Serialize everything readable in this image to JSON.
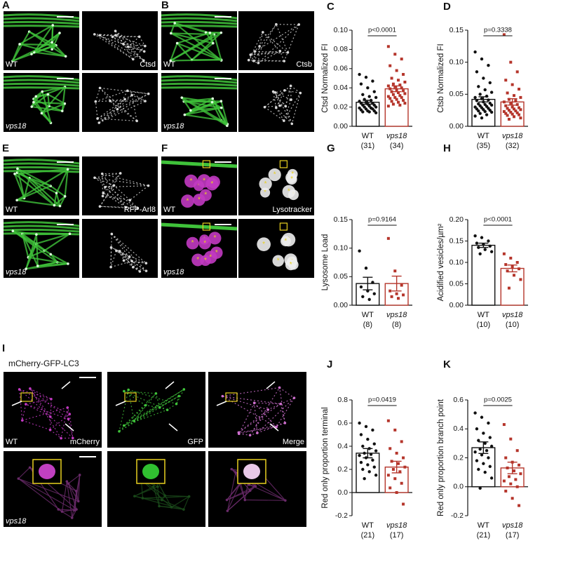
{
  "micrographs": [
    {
      "panel": "A",
      "labels": [
        "WT",
        "Ctsd",
        "vps18"
      ]
    },
    {
      "panel": "B",
      "labels": [
        "WT",
        "Ctsb",
        "vps18"
      ]
    },
    {
      "panel": "E",
      "labels": [
        "WT",
        "RFP-Arl8",
        "vps18"
      ]
    },
    {
      "panel": "F",
      "labels": [
        "WT",
        "Lysotracker",
        "vps18"
      ]
    },
    {
      "panel": "I",
      "title": "mCherry-GFP-LC3",
      "labels": [
        "WT",
        "mCherry",
        "GFP",
        "Merge",
        "vps18"
      ]
    }
  ],
  "chart_data": [
    {
      "type": "bar",
      "panel": "C",
      "y_label": "Ctsd Normalized FI",
      "annotation": "p<0.0001",
      "categories": [
        "WT",
        "vps18"
      ],
      "sample_sizes": [
        "(31)",
        "(34)"
      ],
      "colors": [
        "#111111",
        "#b5352b"
      ],
      "values": [
        0.025,
        0.039
      ],
      "errors": [
        0.002,
        0.003
      ],
      "points": [
        [
          0.054,
          0.051,
          0.047,
          0.044,
          0.04,
          0.036,
          0.033,
          0.031,
          0.03,
          0.028,
          0.027,
          0.026,
          0.025,
          0.024,
          0.024,
          0.023,
          0.022,
          0.022,
          0.021,
          0.02,
          0.02,
          0.019,
          0.019,
          0.018,
          0.018,
          0.017,
          0.016,
          0.016,
          0.015,
          0.015,
          0.014
        ],
        [
          0.083,
          0.075,
          0.07,
          0.063,
          0.058,
          0.054,
          0.05,
          0.048,
          0.046,
          0.044,
          0.043,
          0.042,
          0.041,
          0.04,
          0.039,
          0.038,
          0.037,
          0.036,
          0.035,
          0.034,
          0.033,
          0.032,
          0.031,
          0.03,
          0.03,
          0.029,
          0.028,
          0.027,
          0.026,
          0.025,
          0.024,
          0.023,
          0.022,
          0.021
        ]
      ],
      "ylim": [
        0,
        0.1
      ],
      "yticks": [
        {
          "value": 0,
          "label": "0.00"
        },
        {
          "value": 0.02,
          "label": "0.02"
        },
        {
          "value": 0.04,
          "label": "0.04"
        },
        {
          "value": 0.06,
          "label": "0.06"
        },
        {
          "value": 0.08,
          "label": "0.08"
        },
        {
          "value": 0.1,
          "label": "0.10"
        }
      ]
    },
    {
      "type": "bar",
      "panel": "D",
      "y_label": "Ctsb Normalized FI",
      "annotation": "p=0.3338",
      "categories": [
        "WT",
        "vps18"
      ],
      "sample_sizes": [
        "(35)",
        "(32)"
      ],
      "colors": [
        "#111111",
        "#b5352b"
      ],
      "values": [
        0.042,
        0.038
      ],
      "errors": [
        0.004,
        0.005
      ],
      "points": [
        [
          0.116,
          0.105,
          0.095,
          0.085,
          0.075,
          0.068,
          0.062,
          0.057,
          0.053,
          0.05,
          0.047,
          0.045,
          0.043,
          0.041,
          0.04,
          0.038,
          0.036,
          0.035,
          0.034,
          0.033,
          0.032,
          0.031,
          0.03,
          0.029,
          0.028,
          0.027,
          0.026,
          0.025,
          0.024,
          0.023,
          0.022,
          0.02,
          0.018,
          0.016,
          0.013
        ],
        [
          0.143,
          0.1,
          0.085,
          0.072,
          0.065,
          0.058,
          0.052,
          0.048,
          0.045,
          0.042,
          0.04,
          0.038,
          0.036,
          0.034,
          0.032,
          0.03,
          0.029,
          0.028,
          0.027,
          0.026,
          0.025,
          0.024,
          0.023,
          0.022,
          0.021,
          0.02,
          0.019,
          0.018,
          0.017,
          0.015,
          0.013,
          0.011
        ]
      ],
      "ylim": [
        0,
        0.15
      ],
      "yticks": [
        {
          "value": 0,
          "label": "0.00"
        },
        {
          "value": 0.05,
          "label": "0.05"
        },
        {
          "value": 0.1,
          "label": "0.10"
        },
        {
          "value": 0.15,
          "label": "0.15"
        }
      ]
    },
    {
      "type": "bar",
      "panel": "G",
      "y_label": "Lysosome Load",
      "annotation": "p=0.9164",
      "categories": [
        "WT",
        "vps18"
      ],
      "sample_sizes": [
        "(8)",
        "(8)"
      ],
      "colors": [
        "#111111",
        "#b5352b"
      ],
      "values": [
        0.038,
        0.038
      ],
      "errors": [
        0.011,
        0.013
      ],
      "points": [
        [
          0.095,
          0.065,
          0.04,
          0.032,
          0.025,
          0.02,
          0.015,
          0.01
        ],
        [
          0.117,
          0.06,
          0.035,
          0.025,
          0.02,
          0.018,
          0.015,
          0.012
        ]
      ],
      "ylim": [
        0,
        0.15
      ],
      "yticks": [
        {
          "value": 0,
          "label": "0.00"
        },
        {
          "value": 0.05,
          "label": "0.05"
        },
        {
          "value": 0.1,
          "label": "0.10"
        },
        {
          "value": 0.15,
          "label": "0.15"
        }
      ]
    },
    {
      "type": "bar",
      "panel": "H",
      "y_label": "Acidified vesicles/µm²",
      "annotation": "p<0.0001",
      "categories": [
        "WT",
        "vps18"
      ],
      "sample_sizes": [
        "(10)",
        "(10)"
      ],
      "colors": [
        "#111111",
        "#b5352b"
      ],
      "values": [
        0.14,
        0.086
      ],
      "errors": [
        0.005,
        0.008
      ],
      "points": [
        [
          0.162,
          0.158,
          0.15,
          0.145,
          0.142,
          0.138,
          0.135,
          0.13,
          0.125,
          0.12
        ],
        [
          0.12,
          0.11,
          0.1,
          0.095,
          0.09,
          0.085,
          0.08,
          0.07,
          0.06,
          0.04
        ]
      ],
      "ylim": [
        0,
        0.2
      ],
      "yticks": [
        {
          "value": 0,
          "label": "0.00"
        },
        {
          "value": 0.05,
          "label": "0.05"
        },
        {
          "value": 0.1,
          "label": "0.10"
        },
        {
          "value": 0.15,
          "label": "0.15"
        },
        {
          "value": 0.2,
          "label": "0.20"
        }
      ]
    },
    {
      "type": "bar",
      "panel": "J",
      "y_label": "Red only proportion terminal",
      "annotation": "p=0.0419",
      "categories": [
        "WT",
        "vps18"
      ],
      "sample_sizes": [
        "(21)",
        "(17)"
      ],
      "colors": [
        "#111111",
        "#b5352b"
      ],
      "values": [
        0.34,
        0.22
      ],
      "errors": [
        0.04,
        0.05
      ],
      "points": [
        [
          0.6,
          0.57,
          0.54,
          0.5,
          0.46,
          0.42,
          0.4,
          0.38,
          0.36,
          0.34,
          0.33,
          0.32,
          0.3,
          0.28,
          0.26,
          0.24,
          0.22,
          0.2,
          0.18,
          0.15,
          0.12
        ],
        [
          0.62,
          0.54,
          0.44,
          0.38,
          0.34,
          0.3,
          0.27,
          0.25,
          0.22,
          0.2,
          0.18,
          0.15,
          0.12,
          0.08,
          0.04,
          0.0,
          -0.1
        ]
      ],
      "ylim": [
        -0.2,
        0.8
      ],
      "yticks": [
        -0.2,
        {
          "value": 0,
          "label": "0.0"
        },
        0.2,
        0.4,
        0.6,
        0.8
      ]
    },
    {
      "type": "bar",
      "panel": "K",
      "y_label": "Red only proportion branch point",
      "annotation": "p=0.0025",
      "categories": [
        "WT",
        "vps18"
      ],
      "sample_sizes": [
        "(21)",
        "(17)"
      ],
      "colors": [
        "#111111",
        "#b5352b"
      ],
      "values": [
        0.27,
        0.13
      ],
      "errors": [
        0.04,
        0.04
      ],
      "points": [
        [
          0.51,
          0.48,
          0.44,
          0.4,
          0.37,
          0.34,
          0.32,
          0.3,
          0.28,
          0.26,
          0.25,
          0.24,
          0.22,
          0.2,
          0.18,
          0.16,
          0.14,
          0.12,
          0.1,
          0.06,
          -0.01
        ],
        [
          0.43,
          0.33,
          0.25,
          0.2,
          0.17,
          0.15,
          0.13,
          0.11,
          0.09,
          0.07,
          0.05,
          0.04,
          0.02,
          0.0,
          -0.03,
          -0.08,
          -0.13
        ]
      ],
      "ylim": [
        -0.2,
        0.6
      ],
      "yticks": [
        -0.2,
        {
          "value": 0,
          "label": "0.0"
        },
        0.2,
        0.4,
        0.6
      ]
    }
  ]
}
